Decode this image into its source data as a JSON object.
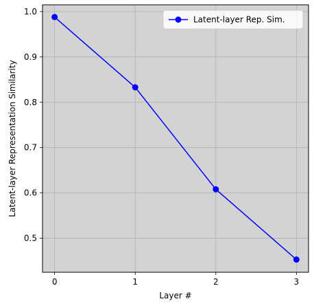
{
  "chart_data": {
    "type": "line",
    "title": "",
    "xlabel": "Layer #",
    "ylabel": "Latent-layer Representation Similarity",
    "x": [
      0,
      1,
      2,
      3
    ],
    "series": [
      {
        "name": "Latent-layer Rep. Sim.",
        "values": [
          0.988,
          0.833,
          0.608,
          0.453
        ],
        "color": "#0000ff"
      }
    ],
    "xlim": [
      -0.15,
      3.15
    ],
    "ylim": [
      0.425,
      1.015
    ],
    "xticks": [
      0,
      1,
      2,
      3
    ],
    "xtick_labels": [
      "0",
      "1",
      "2",
      "3"
    ],
    "yticks": [
      0.5,
      0.6,
      0.7,
      0.8,
      0.9,
      1.0
    ],
    "ytick_labels": [
      "0.5",
      "0.6",
      "0.7",
      "0.8",
      "0.9",
      "1.0"
    ],
    "grid": true,
    "legend_position": "top-right",
    "plot_background": "#d3d3d3",
    "grid_color": "#b0b0b0",
    "marker": "circle"
  }
}
